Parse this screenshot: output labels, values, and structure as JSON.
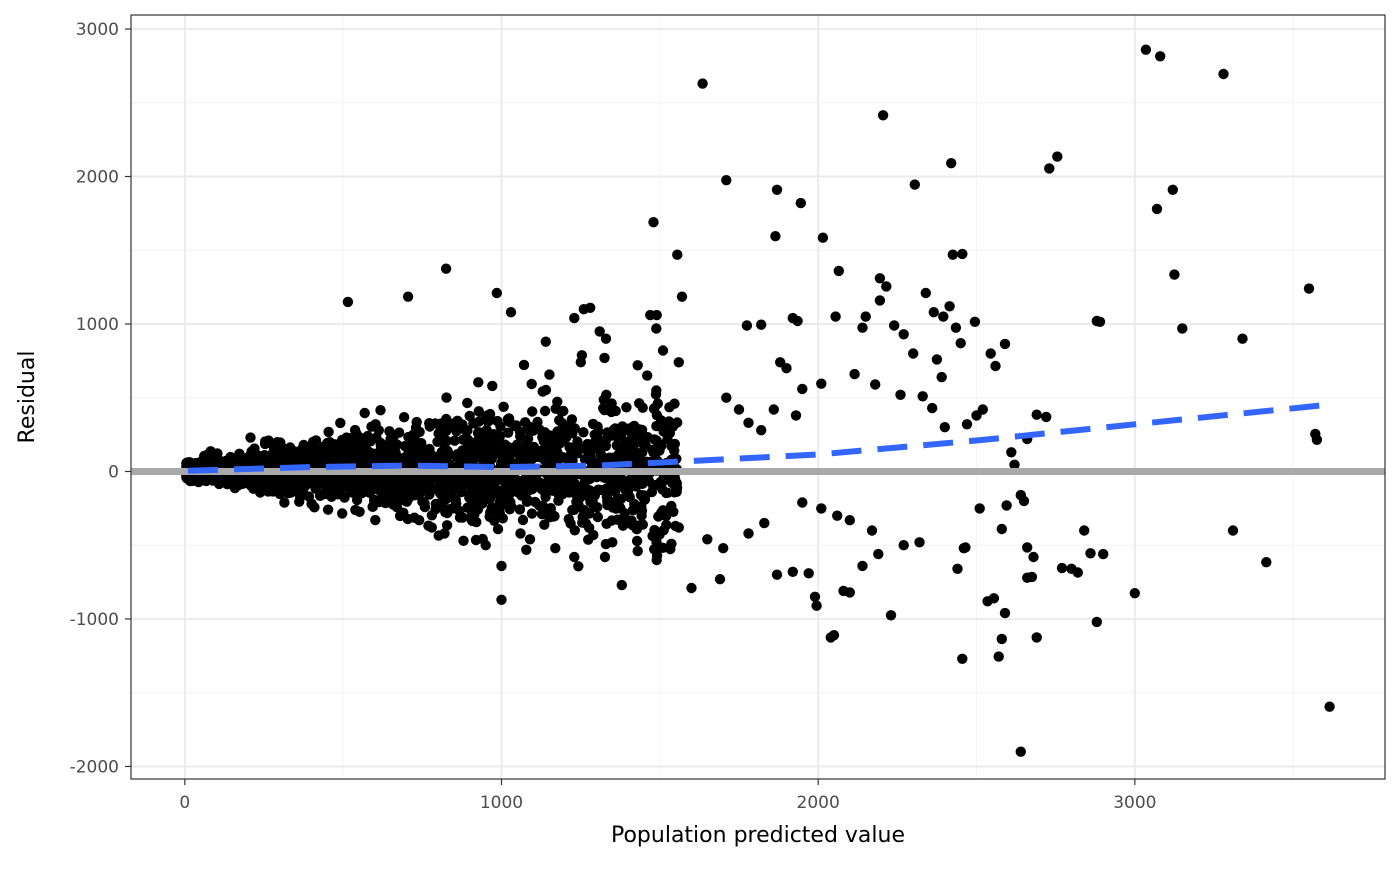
{
  "chart_data": {
    "type": "scatter",
    "title": "",
    "xlabel": "Population predicted value",
    "ylabel": "Residual",
    "xlim": [
      -170,
      3790
    ],
    "ylim": [
      -2085,
      3095
    ],
    "x_ticks": [
      0,
      1000,
      2000,
      3000
    ],
    "y_ticks": [
      -2000,
      -1000,
      0,
      1000,
      2000,
      3000
    ],
    "x_tick_labels": [
      "0",
      "1000",
      "2000",
      "3000"
    ],
    "y_tick_labels": [
      "-2000",
      "-1000",
      "0",
      "1000",
      "2000",
      "3000"
    ],
    "grid": true,
    "legend": "none",
    "colors": {
      "points": "#000000",
      "smooth_line": "#3366FF",
      "reference_line": "#A9A9A9",
      "grid_major": "#EBEBEB",
      "grid_minor": "#F4F4F4",
      "panel_border": "#333333"
    },
    "reference_line": {
      "y": 0
    },
    "smooth_line": {
      "style": "dashed",
      "x": [
        10,
        400,
        700,
        1000,
        1300,
        1500,
        2000,
        2500,
        3000,
        3600
      ],
      "y": [
        5,
        30,
        40,
        30,
        40,
        60,
        115,
        210,
        320,
        450
      ]
    },
    "points": [
      [
        1635,
        2630
      ],
      [
        2205,
        2415
      ],
      [
        3035,
        2860
      ],
      [
        3080,
        2815
      ],
      [
        3280,
        2695
      ],
      [
        2755,
        2135
      ],
      [
        2730,
        2055
      ],
      [
        2420,
        2090
      ],
      [
        1710,
        1975
      ],
      [
        2305,
        1945
      ],
      [
        1870,
        1910
      ],
      [
        1945,
        1820
      ],
      [
        3120,
        1910
      ],
      [
        3070,
        1780
      ],
      [
        1480,
        1690
      ],
      [
        2015,
        1585
      ],
      [
        1865,
        1595
      ],
      [
        1555,
        1470
      ],
      [
        2425,
        1470
      ],
      [
        2455,
        1475
      ],
      [
        3125,
        1335
      ],
      [
        2065,
        1360
      ],
      [
        825,
        1375
      ],
      [
        2195,
        1310
      ],
      [
        2215,
        1255
      ],
      [
        1570,
        1185
      ],
      [
        3550,
        1240
      ],
      [
        705,
        1185
      ],
      [
        515,
        1150
      ],
      [
        985,
        1210
      ],
      [
        2880,
        1020
      ],
      [
        2890,
        1015
      ],
      [
        3150,
        970
      ],
      [
        3340,
        900
      ],
      [
        1775,
        990
      ],
      [
        1820,
        995
      ],
      [
        1920,
        1040
      ],
      [
        1935,
        1020
      ],
      [
        2055,
        1050
      ],
      [
        2140,
        975
      ],
      [
        2150,
        1050
      ],
      [
        2195,
        1160
      ],
      [
        2240,
        990
      ],
      [
        2270,
        930
      ],
      [
        2340,
        1210
      ],
      [
        2365,
        1080
      ],
      [
        2395,
        1050
      ],
      [
        2415,
        1120
      ],
      [
        2435,
        975
      ],
      [
        2450,
        870
      ],
      [
        2495,
        1015
      ],
      [
        2375,
        760
      ],
      [
        2390,
        640
      ],
      [
        2545,
        800
      ],
      [
        2560,
        715
      ],
      [
        2590,
        865
      ],
      [
        2690,
        385
      ],
      [
        2720,
        370
      ],
      [
        3570,
        255
      ],
      [
        3575,
        215
      ],
      [
        3000,
        -825
      ],
      [
        3310,
        -400
      ],
      [
        3415,
        -615
      ],
      [
        3615,
        -1595
      ],
      [
        2640,
        -1900
      ],
      [
        2455,
        -1270
      ],
      [
        2570,
        -1255
      ],
      [
        2580,
        -1135
      ],
      [
        2690,
        -1125
      ],
      [
        2590,
        -960
      ],
      [
        2535,
        -880
      ],
      [
        2555,
        -860
      ],
      [
        2050,
        -1110
      ],
      [
        2040,
        -1125
      ],
      [
        1995,
        -910
      ],
      [
        1990,
        -850
      ],
      [
        2080,
        -810
      ],
      [
        2100,
        -820
      ],
      [
        2230,
        -975
      ],
      [
        2860,
        -555
      ],
      [
        2900,
        -560
      ],
      [
        2880,
        -1020
      ],
      [
        2840,
        -400
      ],
      [
        2800,
        -660
      ],
      [
        2820,
        -685
      ],
      [
        2770,
        -655
      ],
      [
        2675,
        -715
      ],
      [
        2660,
        -720
      ],
      [
        2680,
        -580
      ],
      [
        2660,
        -515
      ],
      [
        2580,
        -390
      ],
      [
        2440,
        -660
      ],
      [
        2465,
        -515
      ],
      [
        2460,
        -520
      ],
      [
        2510,
        -250
      ],
      [
        2595,
        -230
      ],
      [
        2640,
        -160
      ],
      [
        2650,
        -200
      ],
      [
        2620,
        45
      ],
      [
        2610,
        130
      ],
      [
        2660,
        220
      ],
      [
        1030,
        1080
      ],
      [
        1140,
        880
      ],
      [
        1230,
        1040
      ],
      [
        1260,
        1100
      ],
      [
        1280,
        1110
      ],
      [
        1310,
        950
      ],
      [
        1330,
        900
      ],
      [
        1430,
        720
      ],
      [
        1460,
        650
      ],
      [
        1470,
        1060
      ],
      [
        1490,
        1060
      ],
      [
        1510,
        820
      ],
      [
        1560,
        740
      ],
      [
        2010,
        595
      ],
      [
        2115,
        660
      ],
      [
        2180,
        590
      ],
      [
        2260,
        520
      ],
      [
        2300,
        800
      ],
      [
        2330,
        510
      ],
      [
        2360,
        430
      ],
      [
        2400,
        300
      ],
      [
        2470,
        320
      ],
      [
        2500,
        380
      ],
      [
        2520,
        420
      ],
      [
        1880,
        740
      ],
      [
        1900,
        700
      ],
      [
        1950,
        560
      ],
      [
        1710,
        500
      ],
      [
        1750,
        420
      ],
      [
        1780,
        330
      ],
      [
        1820,
        280
      ],
      [
        1860,
        420
      ],
      [
        1930,
        380
      ],
      [
        1000,
        -870
      ],
      [
        1380,
        -770
      ],
      [
        1600,
        -790
      ],
      [
        1690,
        -730
      ],
      [
        1870,
        -700
      ],
      [
        1920,
        -680
      ],
      [
        1970,
        -690
      ],
      [
        2140,
        -640
      ],
      [
        2190,
        -560
      ],
      [
        2270,
        -500
      ],
      [
        2320,
        -480
      ],
      [
        2170,
        -400
      ],
      [
        2100,
        -330
      ],
      [
        2060,
        -300
      ],
      [
        2010,
        -250
      ],
      [
        1950,
        -210
      ],
      [
        1830,
        -350
      ],
      [
        1780,
        -420
      ],
      [
        1700,
        -520
      ],
      [
        1650,
        -460
      ],
      [
        1560,
        -380
      ],
      [
        1490,
        -600
      ],
      [
        1430,
        -540
      ],
      [
        1350,
        -480
      ],
      [
        1290,
        -430
      ],
      [
        1230,
        -580
      ],
      [
        1170,
        -520
      ],
      [
        1090,
        -460
      ],
      [
        1060,
        -420
      ],
      [
        1000,
        -640
      ],
      [
        950,
        -500
      ],
      [
        880,
        -470
      ],
      [
        820,
        -420
      ],
      [
        780,
        -380
      ],
      [
        740,
        -330
      ],
      [
        690,
        -280
      ]
    ],
    "dense_band": {
      "note": "",
      "seed": 7,
      "count": 2600
    }
  }
}
